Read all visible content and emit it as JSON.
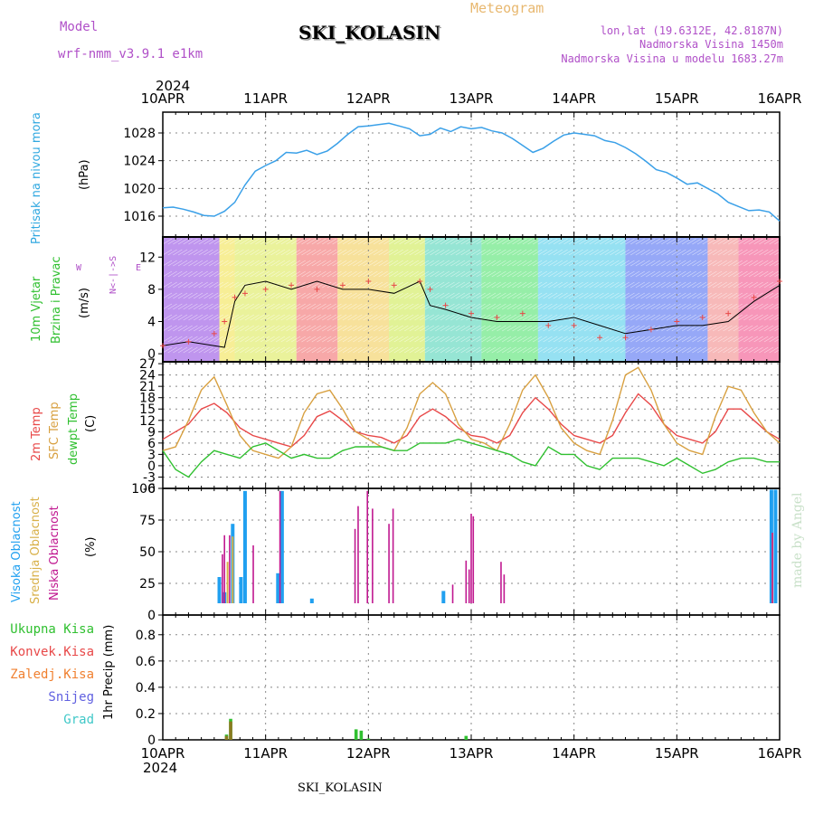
{
  "header": {
    "model_label": "Model",
    "model_name": "wrf-nmm_v3.9.1 e1km",
    "station": "SKI_KOLASIN",
    "title": "Meteogram",
    "lonlat": "lon,lat (19.6312E, 42.8187N)",
    "elevation": "Nadmorska Visina 1450m",
    "elevation_model": "Nadmorska Visina u modelu 1683.27m"
  },
  "footer": {
    "station": "SKI_KOLASIN",
    "watermark": "made by Angel"
  },
  "time_axis": {
    "year": "2024",
    "labels": [
      "10APR",
      "11APR",
      "12APR",
      "13APR",
      "14APR",
      "15APR",
      "16APR"
    ]
  },
  "panels": {
    "pressure": {
      "label": "Pritisak na nivou mora",
      "unit": "(hPa)"
    },
    "wind": {
      "label1": "10m Vjetar",
      "label2": "Brzina i Pravac",
      "unit": "(m/s)",
      "compass_ns": "N<-|->S",
      "compass_w": "W",
      "compass_e": "E"
    },
    "temp": {
      "label1": "2m Temp",
      "label2": "SFC Temp",
      "label3": "dewpt Temp",
      "unit": "(C)"
    },
    "cloud": {
      "label1": "Visoka Oblacnost",
      "label2": "Srednja Oblacnost",
      "label3": "Niska Oblacnost",
      "unit": "(%)"
    },
    "precip": {
      "unit": "1hr Precip (mm)",
      "legend": [
        "Ukupna Kisa",
        "Konvek.Kisa",
        "Zaledj.Kisa",
        "Snijeg",
        "Grad"
      ]
    }
  },
  "colors": {
    "pressure": "#3aa0e8",
    "wind_speed": "#000000",
    "temp2m": "#e84848",
    "sfc_temp": "#d8a040",
    "dewpoint": "#30c030",
    "cloud_high": "#20a0f0",
    "cloud_mid": "#d8b048",
    "cloud_low": "#c01890",
    "rain_total": "#30c030",
    "rain_conv": "#e84848",
    "rain_frz": "#f08030",
    "snow": "#6060e0",
    "hail": "#40c8c8"
  },
  "chart_data": [
    {
      "type": "line",
      "name": "pressure",
      "ylabel": "(hPa)",
      "ylim": [
        1013,
        1031
      ],
      "yticks": [
        1016,
        1020,
        1024,
        1028
      ],
      "x_days": [
        0,
        0.1,
        0.2,
        0.3,
        0.4,
        0.5,
        0.6,
        0.7,
        0.8,
        0.9,
        1.0,
        1.1,
        1.2,
        1.3,
        1.4,
        1.5,
        1.6,
        1.7,
        1.8,
        1.9,
        2.0,
        2.1,
        2.2,
        2.3,
        2.4,
        2.5,
        2.6,
        2.7,
        2.8,
        2.9,
        3.0,
        3.1,
        3.2,
        3.3,
        3.4,
        3.5,
        3.6,
        3.7,
        3.8,
        3.9,
        4.0,
        4.1,
        4.2,
        4.3,
        4.4,
        4.5,
        4.6,
        4.7,
        4.8,
        4.9,
        5.0,
        5.1,
        5.2,
        5.3,
        5.4,
        5.5,
        5.6,
        5.7,
        5.8,
        5.9,
        6.0
      ],
      "values": [
        1017.2,
        1017.3,
        1017.0,
        1016.6,
        1016.1,
        1016.0,
        1016.7,
        1018.0,
        1020.5,
        1022.5,
        1023.3,
        1024.0,
        1025.2,
        1025.1,
        1025.5,
        1024.9,
        1025.4,
        1026.5,
        1027.8,
        1028.9,
        1029.0,
        1029.2,
        1029.4,
        1029.0,
        1028.6,
        1027.6,
        1027.8,
        1028.7,
        1028.2,
        1028.9,
        1028.6,
        1028.8,
        1028.3,
        1028.0,
        1027.2,
        1026.2,
        1025.2,
        1025.8,
        1026.8,
        1027.7,
        1028.0,
        1027.8,
        1027.6,
        1026.9,
        1026.6,
        1025.9,
        1025.0,
        1023.9,
        1022.7,
        1022.3,
        1021.5,
        1020.6,
        1020.8,
        1020.0,
        1019.2,
        1018.0,
        1017.4,
        1016.8,
        1016.9,
        1016.6,
        1015.3
      ]
    },
    {
      "type": "line",
      "name": "wind speed",
      "ylabel": "(m/s)",
      "ylim": [
        -1,
        14.5
      ],
      "yticks": [
        0,
        4,
        8,
        12
      ],
      "x_days": [
        0,
        0.25,
        0.5,
        0.6,
        0.7,
        0.8,
        1.0,
        1.25,
        1.5,
        1.75,
        2.0,
        2.25,
        2.5,
        2.6,
        2.75,
        3.0,
        3.25,
        3.5,
        3.75,
        4.0,
        4.25,
        4.5,
        4.75,
        5.0,
        5.25,
        5.5,
        5.75,
        6.0
      ],
      "values": [
        1.0,
        1.5,
        1.0,
        0.8,
        6.5,
        8.5,
        9.0,
        8.0,
        9.0,
        8.0,
        8.0,
        7.5,
        9.0,
        6.0,
        5.5,
        4.5,
        4.0,
        4.0,
        4.0,
        4.5,
        3.5,
        2.5,
        3.0,
        3.5,
        3.5,
        4.0,
        6.5,
        8.5
      ],
      "gust_plus": [
        1.0,
        1.5,
        2.5,
        4.0,
        7.0,
        7.5,
        8.0,
        8.5,
        8.0,
        8.5,
        9.0,
        8.5,
        9.0,
        8.0,
        6.0,
        5.0,
        4.5,
        5.0,
        3.5,
        3.5,
        2.0,
        2.0,
        3.0,
        4.0,
        4.5,
        5.0,
        7.0,
        9.0
      ]
    },
    {
      "type": "line",
      "name": "temperature",
      "ylabel": "(C)",
      "ylim": [
        -6,
        27.5
      ],
      "yticks": [
        -6,
        -3,
        0,
        3,
        6,
        9,
        12,
        15,
        18,
        21,
        24,
        27
      ],
      "x_days": [
        0,
        0.125,
        0.25,
        0.375,
        0.5,
        0.625,
        0.75,
        0.875,
        1.0,
        1.125,
        1.25,
        1.375,
        1.5,
        1.625,
        1.75,
        1.875,
        2.0,
        2.125,
        2.25,
        2.375,
        2.5,
        2.625,
        2.75,
        2.875,
        3.0,
        3.125,
        3.25,
        3.375,
        3.5,
        3.625,
        3.75,
        3.875,
        4.0,
        4.125,
        4.25,
        4.375,
        4.5,
        4.625,
        4.75,
        4.875,
        5.0,
        5.125,
        5.25,
        5.375,
        5.5,
        5.625,
        5.75,
        5.875,
        6.0
      ],
      "series": [
        {
          "name": "2m Temp",
          "values": [
            7,
            9,
            11,
            15,
            16.5,
            14,
            10,
            8,
            7,
            6,
            5,
            8,
            13,
            14.5,
            12,
            9,
            8,
            7.5,
            6,
            8,
            13,
            15,
            13,
            10,
            8,
            7.5,
            6,
            8,
            14,
            18,
            15,
            11,
            8,
            7,
            6,
            8,
            14,
            19,
            16,
            11,
            8,
            7,
            6,
            9,
            15,
            15,
            12,
            9,
            7
          ]
        },
        {
          "name": "SFC Temp",
          "values": [
            4,
            5,
            12,
            20,
            23.5,
            16,
            8,
            4,
            3,
            2,
            5,
            14,
            19,
            20,
            15,
            9,
            7,
            5,
            4,
            10,
            19,
            22,
            19,
            11,
            7,
            6,
            4,
            11,
            20,
            24,
            18,
            10,
            6,
            4,
            3,
            12,
            24,
            26,
            20,
            11,
            6,
            4,
            3,
            13,
            21,
            20,
            14,
            9,
            6
          ]
        },
        {
          "name": "dewpt Temp",
          "values": [
            4,
            -1,
            -3,
            1,
            4,
            3,
            2,
            5,
            6,
            4,
            2,
            3,
            2,
            2,
            4,
            5,
            5,
            5,
            4,
            4,
            6,
            6,
            6,
            7,
            6,
            5,
            4,
            3,
            1,
            0,
            5,
            3,
            3,
            0,
            -1,
            2,
            2,
            2,
            1,
            0,
            2,
            0,
            -2,
            -1,
            1,
            2,
            2,
            1,
            1
          ]
        }
      ]
    },
    {
      "type": "bar",
      "name": "cloudiness",
      "ylabel": "(%)",
      "ylim": [
        0,
        100
      ],
      "yticks": [
        0,
        25,
        50,
        75,
        100
      ],
      "series": [
        {
          "name": "Visoka Oblacnost",
          "x_days": [
            0.55,
            0.6,
            0.68,
            0.76,
            0.8,
            1.12,
            1.16,
            1.45,
            2.73,
            5.85,
            5.92,
            5.96
          ],
          "values": [
            30,
            18,
            72,
            30,
            98,
            33,
            98,
            13,
            19,
            8,
            99,
            99
          ]
        },
        {
          "name": "Srednja Oblacnost",
          "x_days": [
            0.52,
            0.63,
            0.68,
            5.93
          ],
          "values": [
            8,
            42,
            62,
            65
          ]
        },
        {
          "name": "Niska Oblacnost",
          "x_days": [
            0.58,
            0.6,
            0.65,
            0.88,
            1.14,
            1.87,
            1.9,
            1.99,
            2.04,
            2.2,
            2.24,
            2.3,
            2.38,
            2.43,
            2.6,
            2.68,
            2.82,
            2.95,
            2.98,
            3.0,
            3.02,
            3.12,
            3.29,
            3.32,
            3.48,
            4.45,
            5.93
          ],
          "values": [
            48,
            63,
            63,
            55,
            98,
            68,
            86,
            98,
            84,
            72,
            84,
            8,
            8,
            8,
            8,
            8,
            24,
            43,
            36,
            80,
            78,
            6,
            42,
            32,
            8,
            8,
            65
          ]
        }
      ]
    },
    {
      "type": "bar",
      "name": "1hr precipitation",
      "ylabel": "1hr Precip (mm)",
      "ylim": [
        0,
        0.95
      ],
      "yticks": [
        0,
        0.2,
        0.4,
        0.6,
        0.8
      ],
      "series": [
        {
          "name": "Ukupna Kisa",
          "x_days": [
            0.62,
            0.66,
            1.88,
            1.93,
            2.0,
            2.95
          ],
          "values": [
            0.04,
            0.16,
            0.08,
            0.07,
            0.01,
            0.03
          ]
        },
        {
          "name": "Zaledj.Kisa",
          "x_days": [
            0.62,
            0.66
          ],
          "values": [
            0.03,
            0.14
          ]
        }
      ]
    }
  ]
}
